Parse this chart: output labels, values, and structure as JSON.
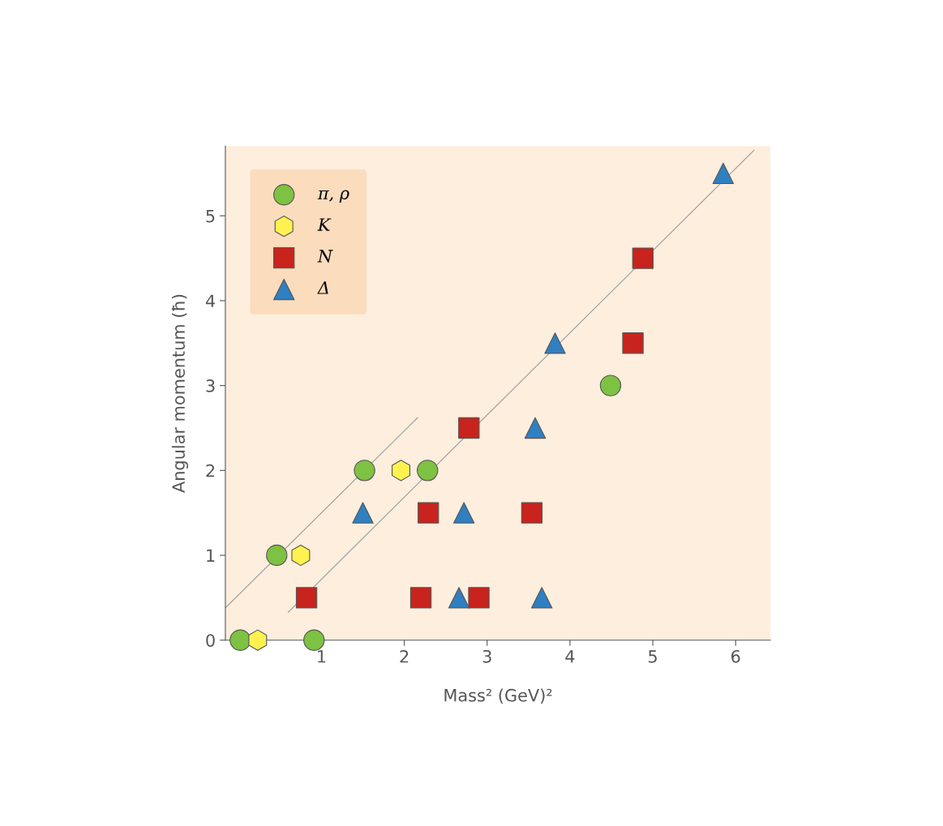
{
  "chart_data": {
    "type": "scatter",
    "xlabel": "Mass² (GeV)²",
    "ylabel": "Angular momentum (ħ)",
    "xlim": [
      -0.16,
      6.42
    ],
    "ylim": [
      0,
      5.82
    ],
    "xticks": [
      1,
      2,
      3,
      4,
      5,
      6
    ],
    "yticks": [
      0,
      1,
      2,
      3,
      4,
      5
    ],
    "grid": false,
    "legend": "top left",
    "series": [
      {
        "type": "line",
        "color": "#9a9a9a",
        "marker": "none",
        "x": [
          0.6,
          6.22
        ],
        "values": [
          0.33,
          5.77
        ]
      },
      {
        "type": "line",
        "color": "#9a9a9a",
        "marker": "none",
        "x": [
          -0.16,
          2.16
        ],
        "values": [
          0.38,
          2.62
        ]
      },
      {
        "name": "π, ρ",
        "color": "#7dc242",
        "marker": "circle",
        "x": [
          0.02,
          0.46,
          0.91,
          1.52,
          2.28,
          4.49
        ],
        "values": [
          0,
          1,
          0,
          2,
          2,
          3
        ]
      },
      {
        "name": "K",
        "color": "#fff250",
        "x": [
          0.23,
          0.75,
          1.96
        ],
        "values": [
          0,
          1,
          2
        ]
      },
      {
        "name": "N",
        "color": "#c8231c",
        "marker": "square",
        "x": [
          0.82,
          2.2,
          2.9,
          2.29,
          3.54,
          2.78,
          4.76,
          4.88
        ],
        "values": [
          0.5,
          0.5,
          0.5,
          1.5,
          1.5,
          2.5,
          3.5,
          4.5
        ]
      },
      {
        "name": "Δ",
        "color": "#2f7fc1",
        "marker": "triangle",
        "x": [
          1.5,
          2.66,
          2.72,
          3.66,
          3.58,
          3.82,
          5.85
        ],
        "values": [
          1.5,
          0.5,
          1.5,
          0.5,
          2.5,
          3.5,
          5.5
        ]
      }
    ]
  }
}
